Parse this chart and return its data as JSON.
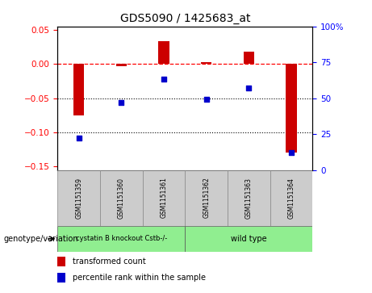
{
  "title": "GDS5090 / 1425683_at",
  "samples": [
    "GSM1151359",
    "GSM1151360",
    "GSM1151361",
    "GSM1151362",
    "GSM1151363",
    "GSM1151364"
  ],
  "red_bars": [
    -0.075,
    -0.003,
    0.033,
    0.003,
    0.018,
    -0.13
  ],
  "blue_dots": [
    22,
    47,
    63,
    49,
    57,
    12
  ],
  "left_ylim": [
    -0.155,
    0.055
  ],
  "right_ylim": [
    0,
    100
  ],
  "left_yticks": [
    0.05,
    0.0,
    -0.05,
    -0.1,
    -0.15
  ],
  "right_yticks": [
    100,
    75,
    50,
    25,
    0
  ],
  "group1_label": "cystatin B knockout Cstb-/-",
  "group2_label": "wild type",
  "group1_indices": [
    0,
    1,
    2
  ],
  "group2_indices": [
    3,
    4,
    5
  ],
  "bar_color": "#cc0000",
  "dot_color": "#0000cc",
  "group1_color": "#90ee90",
  "group2_color": "#90ee90",
  "sample_box_color": "#cccccc",
  "legend_bar_label": "transformed count",
  "legend_dot_label": "percentile rank within the sample",
  "genotype_label": "genotype/variation"
}
